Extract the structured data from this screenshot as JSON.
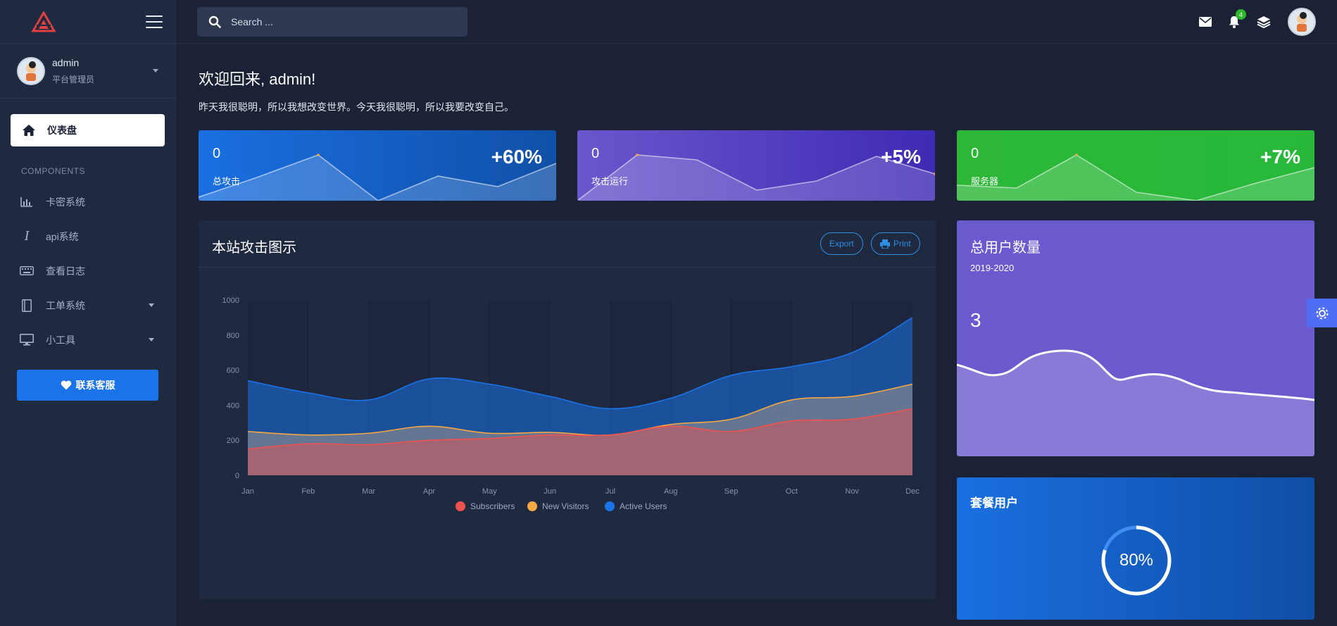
{
  "sidebar": {
    "user": {
      "name": "admin",
      "role": "平台管理员"
    },
    "active_item": "仪表盘",
    "section_label": "COMPONENTS",
    "items": [
      {
        "label": "卡密系统",
        "icon": "bar-chart-icon",
        "has_caret": false
      },
      {
        "label": "api系统",
        "icon": "italic-i-icon",
        "has_caret": false
      },
      {
        "label": "查看日志",
        "icon": "keyboard-icon",
        "has_caret": false
      },
      {
        "label": "工单系统",
        "icon": "book-icon",
        "has_caret": true
      },
      {
        "label": "小工具",
        "icon": "monitor-icon",
        "has_caret": true
      }
    ],
    "cta_label": "联系客服"
  },
  "topbar": {
    "search_placeholder": "Search ...",
    "notifications_count": "4"
  },
  "main": {
    "welcome": "欢迎回来, admin!",
    "motto": "昨天我很聪明，所以我想改变世界。今天我很聪明，所以我要改变自己。",
    "stats": [
      {
        "value": "0",
        "label": "总攻击",
        "change": "+60%",
        "color": "#1a6fe0"
      },
      {
        "value": "0",
        "label": "攻击运行",
        "change": "+5%",
        "color": "#6a57cd"
      },
      {
        "value": "0",
        "label": "服务器",
        "change": "+7%",
        "color": "#2cb737"
      }
    ],
    "chart_card": {
      "title": "本站攻击图示",
      "export_label": "Export",
      "print_label": "Print"
    },
    "users_card": {
      "title": "总用户数量",
      "period": "2019-2020",
      "value": "3"
    },
    "plan_card": {
      "title": "套餐用户",
      "percent_label": "80%",
      "percent": 80
    }
  },
  "chart_data": {
    "type": "area",
    "categories": [
      "Jan",
      "Feb",
      "Mar",
      "Apr",
      "May",
      "Jun",
      "Jul",
      "Aug",
      "Sep",
      "Oct",
      "Nov",
      "Dec"
    ],
    "ylim": [
      0,
      1000
    ],
    "yticks": [
      "0",
      "200",
      "400",
      "600",
      "800",
      "1000"
    ],
    "series": [
      {
        "name": "Active Users",
        "color": "#1a73e8",
        "values": [
          540,
          470,
          430,
          550,
          520,
          450,
          380,
          440,
          570,
          620,
          700,
          900
        ]
      },
      {
        "name": "New Visitors",
        "color": "#f5a742",
        "values": [
          250,
          230,
          240,
          280,
          240,
          245,
          230,
          290,
          320,
          430,
          450,
          520
        ]
      },
      {
        "name": "Subscribers",
        "color": "#ef5350",
        "values": [
          150,
          180,
          175,
          200,
          210,
          230,
          230,
          280,
          250,
          310,
          320,
          380
        ]
      }
    ],
    "legend": [
      "Subscribers",
      "New Visitors",
      "Active Users"
    ],
    "legend_colors": [
      "#ef5350",
      "#f5a742",
      "#1a73e8"
    ],
    "legend_position": "bottom-center",
    "grid": true
  }
}
